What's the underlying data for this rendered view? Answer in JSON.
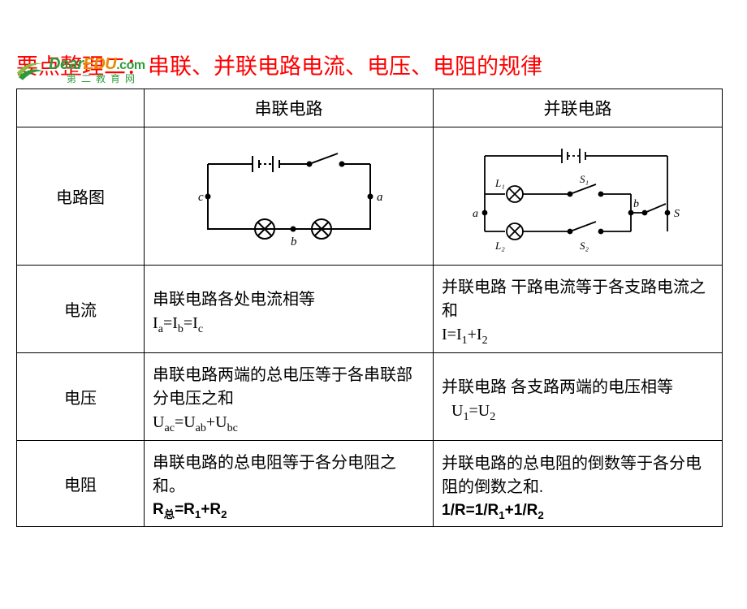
{
  "logo": {
    "dear": "Dear",
    "edu": "EDU",
    "com": ".com",
    "cn": "第二教育网",
    "dear_color": "#2e9b3a",
    "edu_color": "#e88b00",
    "com_color": "#2e9b3a"
  },
  "title": "要点整理二：串联、并联电路电流、电压、电阻的规律",
  "table": {
    "headers": {
      "series": "串联电路",
      "parallel": "并联电路"
    },
    "rows": {
      "diagram": {
        "label": "电路图"
      },
      "current": {
        "label": "电流",
        "series_text": "串联电路各处电流相等",
        "series_formula_html": "I<span class='sub'>a</span>=I<span class='sub'>b</span>=I<span class='sub'>c</span>",
        "parallel_text": "并联电路 干路电流等于各支路电流之和",
        "parallel_formula_html": "I=I<span class='sub'>1</span>+I<span class='sub'>2</span>"
      },
      "voltage": {
        "label": "电压",
        "series_text": "串联电路两端的总电压等于各串联部分电压之和",
        "series_formula_html": "U<span class='sub'>ac</span>=U<span class='sub'>ab</span>+U<span class='sub'>bc</span>",
        "parallel_text": "并联电路 各支路两端的电压相等",
        "parallel_formula_html": "U<span class='sub'>1</span>=U<span class='sub'>2</span>"
      },
      "resistance": {
        "label": "电阻",
        "series_text": "串联电路的总电阻等于各分电阻之和。",
        "series_formula_html": "R<span class='sub'>总</span>=R<span class='sub'>1</span>+R<span class='sub'>2</span>",
        "parallel_text": "并联电路的总电阻的倒数等于各分电阻的倒数之和.",
        "parallel_formula_html": "1/R=1/R<span class='sub'>1</span>+1/R<span class='sub'>2</span>"
      }
    }
  },
  "colors": {
    "title": "#ff0000",
    "border": "#000000",
    "text": "#000000"
  },
  "diagrams": {
    "series": {
      "stroke": "#000000",
      "labels": {
        "a": "a",
        "b": "b",
        "c": "c"
      }
    },
    "parallel": {
      "stroke": "#000000",
      "labels": {
        "a": "a",
        "b": "b",
        "L1": "L₁",
        "L2": "L₂",
        "S1": "S₁",
        "S2": "S₂",
        "S": "S"
      }
    }
  }
}
